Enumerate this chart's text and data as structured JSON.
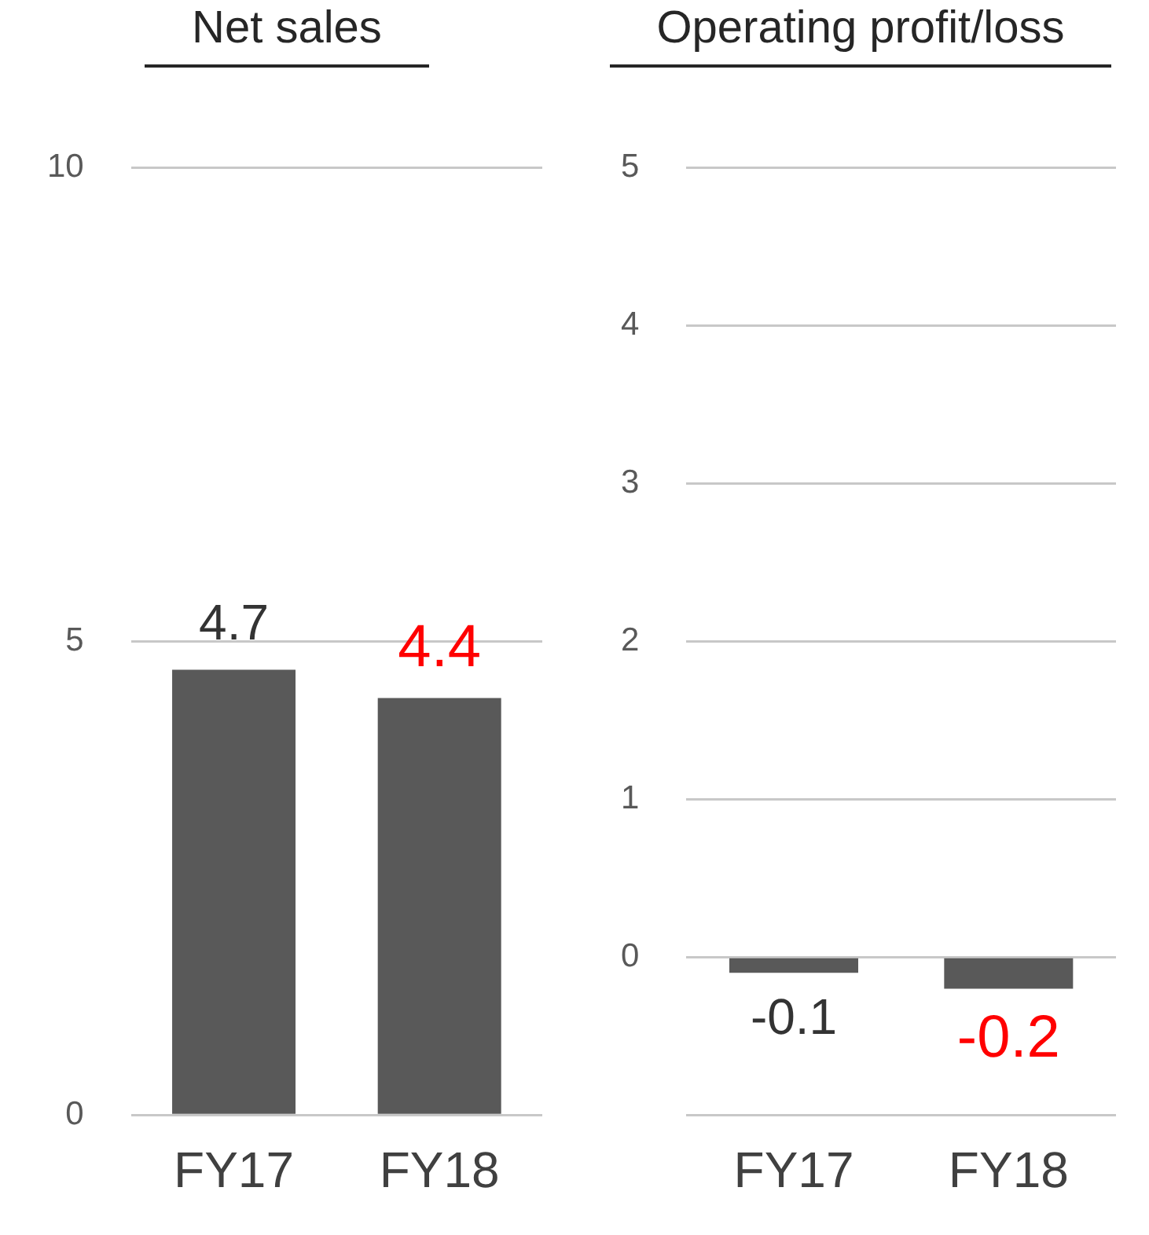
{
  "chart_data": [
    {
      "type": "bar",
      "title": "Net sales",
      "categories": [
        "FY17",
        "FY18"
      ],
      "values": [
        4.7,
        4.4
      ],
      "color": "#595959",
      "ylim": [
        0,
        10
      ],
      "yticks": [
        0,
        5,
        10
      ],
      "grid": "y",
      "legend": false,
      "data_labels": true
    },
    {
      "type": "bar",
      "title": "Operating profit/loss",
      "categories": [
        "FY17",
        "FY18"
      ],
      "values": [
        -0.1,
        -0.2
      ],
      "color": "#595959",
      "ylim": [
        -1,
        5
      ],
      "yticks": [
        {
          "value": -1,
          "label": null
        },
        0,
        1,
        2,
        3,
        4,
        5
      ],
      "grid": "y",
      "legend": false,
      "data_labels": true
    }
  ]
}
